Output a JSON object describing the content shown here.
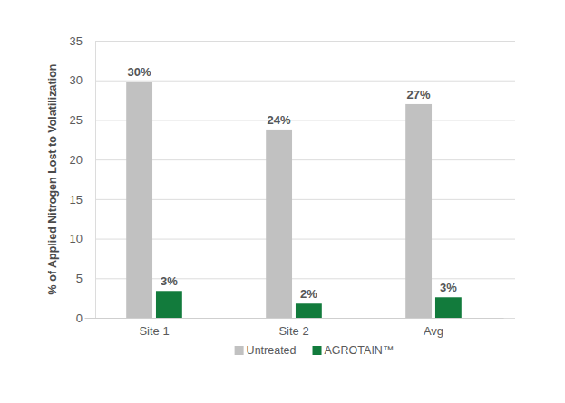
{
  "chart_data": {
    "type": "bar",
    "y_label": "% of Applied Nitrogen Lost to Volatilization",
    "categories": [
      "Site 1",
      "Site 2",
      "Avg"
    ],
    "series": [
      {
        "name": "Untreated",
        "color": "#c1c1c1",
        "values": [
          29.8,
          23.8,
          27
        ],
        "value_labels": [
          "30%",
          "24%",
          "27%"
        ]
      },
      {
        "name": "AGROTAIN™",
        "color": "#127b3c",
        "values": [
          3.4,
          1.8,
          2.6
        ],
        "value_labels": [
          "3%",
          "2%",
          "3%"
        ]
      }
    ],
    "ylim": [
      0,
      35
    ],
    "yticks": [
      0,
      5,
      10,
      15,
      20,
      25,
      30,
      35
    ],
    "grid": true,
    "legend": "bottom",
    "data_labels": true
  }
}
